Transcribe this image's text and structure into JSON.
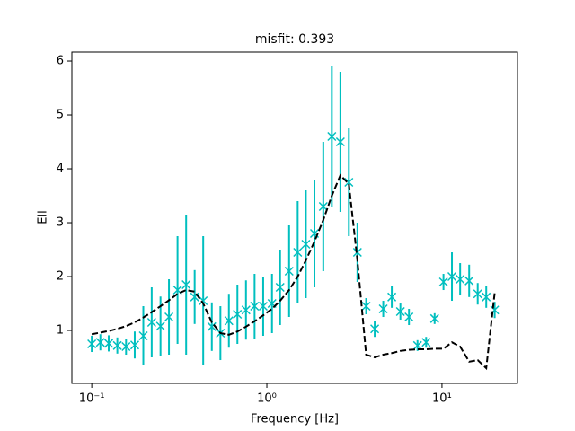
{
  "chart_data": {
    "type": "errorbar",
    "title": "misfit: 0.393",
    "xlabel": "Frequency [Hz]",
    "ylabel": "Ell",
    "xscale": "log",
    "xlim": [
      0.077,
      27.0
    ],
    "ylim": [
      0.017,
      6.167
    ],
    "xticks": [
      {
        "value": 0.1,
        "label": "10⁻¹"
      },
      {
        "value": 1,
        "label": "10⁰"
      },
      {
        "value": 10,
        "label": "10¹"
      }
    ],
    "yticks": [
      1,
      2,
      3,
      4,
      5,
      6
    ],
    "grid": false,
    "x": [
      0.1,
      0.112,
      0.125,
      0.14,
      0.157,
      0.176,
      0.197,
      0.22,
      0.247,
      0.276,
      0.309,
      0.346,
      0.387,
      0.433,
      0.485,
      0.543,
      0.607,
      0.679,
      0.76,
      0.851,
      0.953,
      1.07,
      1.19,
      1.34,
      1.5,
      1.67,
      1.87,
      2.1,
      2.35,
      2.63,
      2.94,
      3.29,
      3.69,
      4.13,
      4.62,
      5.17,
      5.79,
      6.48,
      7.25,
      8.12,
      9.08,
      10.2,
      11.4,
      12.7,
      14.3,
      16.0,
      17.9,
      20.0
    ],
    "series": [
      {
        "color": "#00bfbf",
        "marker": "x",
        "linestyle": "none",
        "values": [
          0.75,
          0.78,
          0.76,
          0.72,
          0.7,
          0.73,
          0.9,
          1.15,
          1.08,
          1.25,
          1.75,
          1.85,
          1.62,
          1.55,
          1.07,
          0.95,
          1.18,
          1.3,
          1.38,
          1.45,
          1.45,
          1.5,
          1.8,
          2.1,
          2.45,
          2.6,
          2.8,
          3.3,
          4.6,
          4.5,
          3.75,
          2.45,
          1.45,
          1.03,
          1.4,
          1.62,
          1.35,
          1.25,
          0.72,
          0.78,
          1.22,
          1.9,
          2.0,
          1.95,
          1.92,
          1.68,
          1.62,
          1.38
        ],
        "errors": [
          0.15,
          0.15,
          0.15,
          0.15,
          0.15,
          0.25,
          0.55,
          0.65,
          0.55,
          0.7,
          1.0,
          1.3,
          0.5,
          1.2,
          0.45,
          0.5,
          0.5,
          0.55,
          0.55,
          0.6,
          0.55,
          0.55,
          0.7,
          0.85,
          0.95,
          1.0,
          1.0,
          1.2,
          1.3,
          1.3,
          1.0,
          0.55,
          0.15,
          0.15,
          0.15,
          0.2,
          0.15,
          0.15,
          0.1,
          0.1,
          0.1,
          0.15,
          0.45,
          0.3,
          0.3,
          0.2,
          0.2,
          0.15
        ]
      },
      {
        "color": "#000000",
        "linestyle": "dashed",
        "values": [
          0.93,
          0.96,
          0.99,
          1.03,
          1.08,
          1.15,
          1.24,
          1.34,
          1.45,
          1.56,
          1.68,
          1.75,
          1.72,
          1.5,
          1.15,
          0.95,
          0.92,
          0.98,
          1.07,
          1.17,
          1.28,
          1.4,
          1.55,
          1.75,
          2.0,
          2.3,
          2.65,
          3.05,
          3.5,
          3.88,
          3.72,
          2.3,
          0.55,
          0.5,
          0.55,
          0.58,
          0.62,
          0.64,
          0.65,
          0.65,
          0.66,
          0.66,
          0.78,
          0.7,
          0.42,
          0.45,
          0.3,
          1.7
        ]
      }
    ]
  }
}
